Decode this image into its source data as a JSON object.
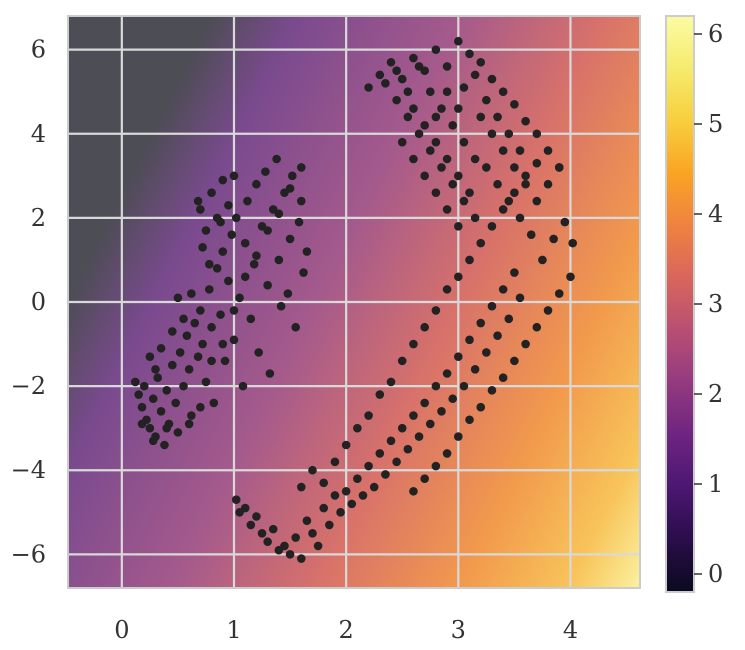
{
  "chart_data": {
    "type": "scatter",
    "title": "",
    "xlabel": "",
    "ylabel": "",
    "xlim": [
      -0.48,
      4.62
    ],
    "ylim": [
      -6.8,
      6.8
    ],
    "grid": true,
    "background": "filled contour field increasing from lower-left/left-middle toward bottom-right (range 0 to 6.2)",
    "x_ticks": [
      {
        "value": 0,
        "label": "0"
      },
      {
        "value": 1,
        "label": "1"
      },
      {
        "value": 2,
        "label": "2"
      },
      {
        "value": 3,
        "label": "3"
      },
      {
        "value": 4,
        "label": "4"
      }
    ],
    "y_ticks": [
      {
        "value": 6,
        "label": "6"
      },
      {
        "value": 4,
        "label": "4"
      },
      {
        "value": 2,
        "label": "2"
      },
      {
        "value": 0,
        "label": "0"
      },
      {
        "value": -2,
        "label": "−2"
      },
      {
        "value": -4,
        "label": "−4"
      },
      {
        "value": -6,
        "label": "−6"
      }
    ],
    "colorbar": {
      "range": [
        -0.2,
        6.2
      ],
      "ticks": [
        {
          "value": 0,
          "label": "0"
        },
        {
          "value": 1,
          "label": "1"
        },
        {
          "value": 2,
          "label": "2"
        },
        {
          "value": 3,
          "label": "3"
        },
        {
          "value": 4,
          "label": "4"
        },
        {
          "value": 5,
          "label": "5"
        },
        {
          "value": 6,
          "label": "6"
        }
      ],
      "colormap": [
        "#0a0a1e",
        "#2a0d4a",
        "#4b1772",
        "#6e2481",
        "#943a7f",
        "#b84f72",
        "#d8665c",
        "#ef8240",
        "#f9a424",
        "#f8cf3e",
        "#f5eb6e",
        "#fcfba4"
      ]
    },
    "series": [
      {
        "color": "#222222",
        "points": [
          [
            0.12,
            -1.9
          ],
          [
            0.15,
            -2.2
          ],
          [
            0.18,
            -2.5
          ],
          [
            0.2,
            -2.0
          ],
          [
            0.22,
            -2.8
          ],
          [
            0.25,
            -3.0
          ],
          [
            0.28,
            -2.3
          ],
          [
            0.3,
            -3.2
          ],
          [
            0.32,
            -1.8
          ],
          [
            0.35,
            -2.6
          ],
          [
            0.38,
            -3.4
          ],
          [
            0.4,
            -2.1
          ],
          [
            0.42,
            -2.9
          ],
          [
            0.45,
            -1.5
          ],
          [
            0.48,
            -2.4
          ],
          [
            0.5,
            -3.1
          ],
          [
            0.52,
            -1.2
          ],
          [
            0.55,
            -2.0
          ],
          [
            0.58,
            -0.8
          ],
          [
            0.6,
            -1.6
          ],
          [
            0.62,
            -2.7
          ],
          [
            0.65,
            -0.5
          ],
          [
            0.68,
            -1.3
          ],
          [
            0.7,
            -0.2
          ],
          [
            0.72,
            -1.0
          ],
          [
            0.75,
            -1.9
          ],
          [
            0.78,
            0.3
          ],
          [
            0.8,
            -0.6
          ],
          [
            0.82,
            -2.4
          ],
          [
            0.85,
            0.8
          ],
          [
            0.88,
            -0.3
          ],
          [
            0.9,
            1.2
          ],
          [
            0.92,
            -1.4
          ],
          [
            0.95,
            0.5
          ],
          [
            0.98,
            1.6
          ],
          [
            1.0,
            -0.9
          ],
          [
            1.02,
            2.0
          ],
          [
            1.05,
            0.1
          ],
          [
            1.08,
            -2.0
          ],
          [
            1.1,
            1.4
          ],
          [
            1.12,
            2.4
          ],
          [
            1.15,
            -0.4
          ],
          [
            1.18,
            0.9
          ],
          [
            1.2,
            2.8
          ],
          [
            1.22,
            -1.2
          ],
          [
            1.25,
            1.8
          ],
          [
            1.28,
            3.1
          ],
          [
            1.3,
            0.4
          ],
          [
            1.32,
            -1.7
          ],
          [
            1.35,
            2.2
          ],
          [
            1.38,
            3.4
          ],
          [
            1.4,
            1.0
          ],
          [
            1.42,
            -0.1
          ],
          [
            1.45,
            2.6
          ],
          [
            1.48,
            0.2
          ],
          [
            1.5,
            1.5
          ],
          [
            1.52,
            3.0
          ],
          [
            1.55,
            -0.6
          ],
          [
            1.58,
            1.9
          ],
          [
            1.6,
            2.4
          ],
          [
            1.62,
            0.7
          ],
          [
            1.65,
            1.2
          ],
          [
            0.7,
            2.2
          ],
          [
            0.75,
            1.7
          ],
          [
            0.8,
            2.6
          ],
          [
            0.85,
            2.0
          ],
          [
            0.9,
            2.9
          ],
          [
            0.95,
            2.3
          ],
          [
            1.0,
            3.0
          ],
          [
            0.72,
            1.3
          ],
          [
            0.78,
            0.9
          ],
          [
            0.88,
            1.9
          ],
          [
            0.68,
            2.4
          ],
          [
            0.62,
            0.2
          ],
          [
            0.55,
            -0.4
          ],
          [
            0.5,
            0.1
          ],
          [
            0.45,
            -0.7
          ],
          [
            0.35,
            -1.1
          ],
          [
            0.3,
            -1.6
          ],
          [
            0.25,
            -1.3
          ],
          [
            0.18,
            -2.9
          ],
          [
            0.28,
            -3.3
          ],
          [
            0.4,
            -3.0
          ],
          [
            0.6,
            -2.9
          ],
          [
            0.7,
            -2.5
          ],
          [
            0.8,
            -1.4
          ],
          [
            0.9,
            -1.0
          ],
          [
            1.0,
            -0.2
          ],
          [
            1.1,
            0.6
          ],
          [
            1.2,
            1.1
          ],
          [
            1.3,
            1.7
          ],
          [
            1.4,
            2.1
          ],
          [
            1.5,
            2.7
          ],
          [
            1.6,
            3.2
          ],
          [
            1.02,
            -4.7
          ],
          [
            1.05,
            -5.0
          ],
          [
            1.1,
            -4.9
          ],
          [
            1.15,
            -5.3
          ],
          [
            1.2,
            -5.1
          ],
          [
            1.25,
            -5.5
          ],
          [
            1.3,
            -5.7
          ],
          [
            1.35,
            -5.4
          ],
          [
            1.4,
            -5.9
          ],
          [
            1.45,
            -5.8
          ],
          [
            1.5,
            -6.0
          ],
          [
            1.55,
            -5.6
          ],
          [
            1.6,
            -6.1
          ],
          [
            1.65,
            -5.2
          ],
          [
            1.7,
            -5.5
          ],
          [
            1.75,
            -5.8
          ],
          [
            1.8,
            -4.9
          ],
          [
            1.85,
            -5.3
          ],
          [
            1.9,
            -4.6
          ],
          [
            1.95,
            -5.0
          ],
          [
            2.0,
            -4.5
          ],
          [
            2.05,
            -4.8
          ],
          [
            2.1,
            -4.2
          ],
          [
            2.15,
            -4.6
          ],
          [
            2.2,
            -3.9
          ],
          [
            2.25,
            -4.4
          ],
          [
            2.3,
            -3.6
          ],
          [
            2.35,
            -4.1
          ],
          [
            2.4,
            -3.3
          ],
          [
            2.45,
            -3.8
          ],
          [
            2.5,
            -3.0
          ],
          [
            2.55,
            -3.5
          ],
          [
            2.6,
            -2.7
          ],
          [
            2.65,
            -3.2
          ],
          [
            2.7,
            -2.4
          ],
          [
            2.75,
            -2.9
          ],
          [
            2.8,
            -2.0
          ],
          [
            2.85,
            -2.6
          ],
          [
            2.9,
            -1.7
          ],
          [
            2.95,
            -2.3
          ],
          [
            3.0,
            -1.3
          ],
          [
            3.05,
            -2.0
          ],
          [
            3.1,
            -0.9
          ],
          [
            3.15,
            -1.6
          ],
          [
            3.2,
            -0.5
          ],
          [
            3.25,
            -1.2
          ],
          [
            3.3,
            -0.1
          ],
          [
            3.35,
            -0.8
          ],
          [
            3.4,
            0.3
          ],
          [
            3.45,
            -0.4
          ],
          [
            3.5,
            0.7
          ],
          [
            3.55,
            0.1
          ],
          [
            1.6,
            -4.4
          ],
          [
            1.7,
            -4.0
          ],
          [
            1.8,
            -4.3
          ],
          [
            1.9,
            -3.8
          ],
          [
            2.0,
            -3.4
          ],
          [
            2.1,
            -3.0
          ],
          [
            2.2,
            -2.7
          ],
          [
            2.3,
            -2.2
          ],
          [
            2.4,
            -1.9
          ],
          [
            2.5,
            -1.4
          ],
          [
            2.6,
            -1.0
          ],
          [
            2.7,
            -0.6
          ],
          [
            2.8,
            -0.2
          ],
          [
            2.9,
            0.3
          ],
          [
            3.0,
            0.6
          ],
          [
            3.1,
            1.0
          ],
          [
            3.2,
            1.4
          ],
          [
            3.3,
            1.8
          ],
          [
            3.4,
            2.2
          ],
          [
            3.5,
            2.6
          ],
          [
            3.6,
            3.0
          ],
          [
            3.7,
            3.3
          ],
          [
            2.6,
            -4.5
          ],
          [
            2.7,
            -4.2
          ],
          [
            2.8,
            -3.9
          ],
          [
            2.9,
            -3.6
          ],
          [
            3.0,
            -3.2
          ],
          [
            3.1,
            -2.8
          ],
          [
            3.2,
            -2.5
          ],
          [
            3.3,
            -2.1
          ],
          [
            3.4,
            -1.8
          ],
          [
            3.5,
            -1.4
          ],
          [
            3.6,
            -1.0
          ],
          [
            3.7,
            -0.6
          ],
          [
            3.8,
            -0.2
          ],
          [
            3.9,
            0.2
          ],
          [
            4.0,
            0.6
          ],
          [
            3.75,
            1.0
          ],
          [
            3.85,
            1.5
          ],
          [
            3.95,
            1.9
          ],
          [
            4.02,
            1.4
          ],
          [
            3.7,
            2.4
          ],
          [
            3.8,
            2.8
          ],
          [
            3.9,
            3.2
          ],
          [
            2.2,
            5.1
          ],
          [
            2.3,
            5.4
          ],
          [
            2.4,
            5.7
          ],
          [
            2.5,
            5.3
          ],
          [
            2.6,
            5.8
          ],
          [
            2.7,
            5.5
          ],
          [
            2.8,
            6.0
          ],
          [
            2.9,
            5.6
          ],
          [
            3.0,
            6.2
          ],
          [
            3.1,
            5.9
          ],
          [
            3.2,
            5.7
          ],
          [
            3.3,
            5.3
          ],
          [
            3.4,
            5.0
          ],
          [
            3.5,
            4.7
          ],
          [
            3.6,
            4.3
          ],
          [
            3.7,
            4.0
          ],
          [
            3.8,
            3.6
          ],
          [
            3.9,
            3.2
          ],
          [
            2.45,
            4.8
          ],
          [
            2.55,
            4.4
          ],
          [
            2.65,
            4.0
          ],
          [
            2.75,
            3.6
          ],
          [
            2.85,
            3.2
          ],
          [
            2.95,
            2.8
          ],
          [
            3.05,
            2.4
          ],
          [
            3.15,
            2.0
          ],
          [
            2.5,
            3.8
          ],
          [
            2.6,
            3.4
          ],
          [
            2.7,
            3.0
          ],
          [
            2.8,
            2.6
          ],
          [
            2.9,
            2.2
          ],
          [
            3.0,
            1.8
          ],
          [
            2.6,
            4.6
          ],
          [
            2.7,
            4.2
          ],
          [
            2.8,
            3.8
          ],
          [
            2.9,
            3.4
          ],
          [
            3.0,
            3.0
          ],
          [
            3.1,
            2.6
          ],
          [
            3.2,
            4.4
          ],
          [
            3.3,
            4.0
          ],
          [
            3.4,
            3.6
          ],
          [
            3.5,
            3.2
          ],
          [
            3.6,
            2.8
          ],
          [
            3.25,
            3.2
          ],
          [
            3.35,
            2.8
          ],
          [
            3.45,
            2.4
          ],
          [
            3.55,
            2.0
          ],
          [
            3.65,
            1.6
          ],
          [
            2.75,
            5.0
          ],
          [
            2.85,
            4.6
          ],
          [
            2.95,
            4.2
          ],
          [
            3.05,
            3.8
          ],
          [
            3.15,
            3.4
          ],
          [
            3.25,
            4.8
          ],
          [
            3.35,
            4.4
          ],
          [
            3.45,
            4.0
          ],
          [
            3.55,
            3.6
          ],
          [
            2.35,
            5.2
          ],
          [
            2.45,
            5.5
          ],
          [
            2.55,
            5.0
          ],
          [
            2.65,
            5.6
          ],
          [
            3.05,
            5.1
          ],
          [
            3.15,
            5.4
          ],
          [
            2.9,
            5.0
          ],
          [
            2.8,
            4.4
          ],
          [
            3.0,
            4.6
          ]
        ]
      }
    ]
  }
}
